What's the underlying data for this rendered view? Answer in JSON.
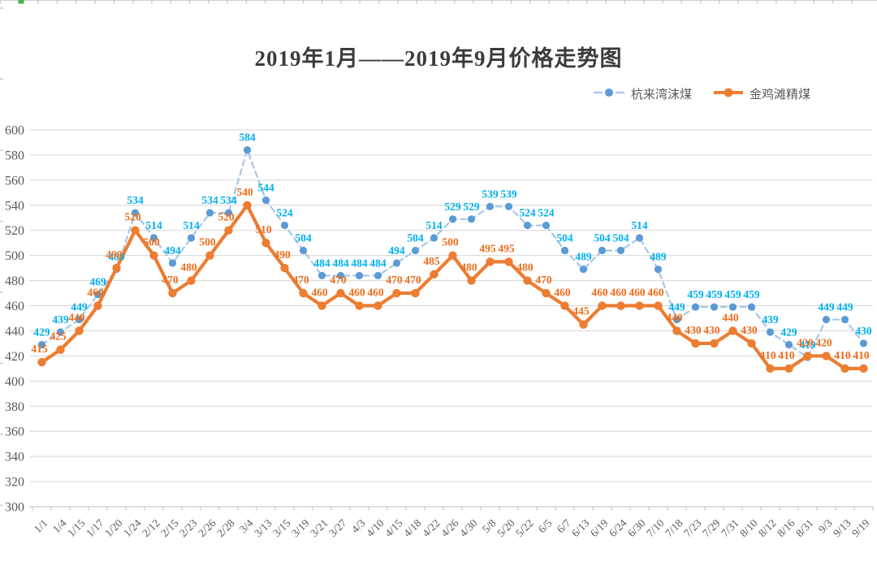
{
  "title": {
    "text": "2019年1月——2019年9月价格走势图"
  },
  "legend": {
    "items": [
      {
        "label": "杭来湾沫煤",
        "marker": "dashed-line-with-dot",
        "line_color": "#A9C6E8",
        "dot_color": "#5B9BD5"
      },
      {
        "label": "金鸡滩精煤",
        "marker": "solid-line-with-dot",
        "line_color": "#ED7D31",
        "dot_color": "#ED7D31"
      }
    ]
  },
  "axes": {
    "y_ticks": [
      600,
      580,
      560,
      540,
      520,
      500,
      480,
      460,
      440,
      420,
      400,
      380,
      360,
      340,
      320,
      300
    ],
    "y_label_color": "#595959",
    "x_label_color": "#595959",
    "grid_color": "#D6D6D6",
    "axis_color": "#BFBFBF"
  },
  "chart_data": {
    "type": "line",
    "title": "2019年1月——2019年9月价格走势图",
    "xlabel": "",
    "ylabel": "",
    "ylim": [
      300,
      600
    ],
    "ytick_step": 20,
    "grid": true,
    "legend_position": "top-right",
    "data_labels": true,
    "categories": [
      "1/1",
      "1/4",
      "1/15",
      "1/17",
      "1/20",
      "1/24",
      "2/12",
      "2/15",
      "2/23",
      "2/26",
      "2/28",
      "3/4",
      "3/13",
      "3/15",
      "3/19",
      "3/21",
      "3/27",
      "4/3",
      "4/10",
      "4/15",
      "4/18",
      "4/22",
      "4/26",
      "4/30",
      "5/8",
      "5/20",
      "5/22",
      "6/5",
      "6/7",
      "6/13",
      "6/19",
      "6/24",
      "6/30",
      "7/10",
      "7/18",
      "7/23",
      "7/29",
      "7/31",
      "8/10",
      "8/12",
      "8/16",
      "8/31",
      "9/3",
      "9/13",
      "9/19"
    ],
    "series": [
      {
        "name": "杭来湾沫煤",
        "style": "dashed",
        "line_color": "#A9C6E8",
        "marker_color": "#5B9BD5",
        "label_color": "#00B0F0",
        "values": [
          429,
          439,
          449,
          469,
          489,
          534,
          514,
          494,
          514,
          534,
          534,
          584,
          544,
          524,
          504,
          484,
          484,
          484,
          484,
          494,
          504,
          514,
          529,
          529,
          539,
          539,
          524,
          524,
          504,
          489,
          504,
          504,
          514,
          489,
          449,
          459,
          459,
          459,
          459,
          439,
          429,
          419,
          449,
          449,
          430
        ]
      },
      {
        "name": "金鸡滩精煤",
        "style": "solid",
        "line_color": "#ED7D31",
        "marker_color": "#ED7D31",
        "label_color": "#ED6E1E",
        "values": [
          415,
          425,
          440,
          460,
          490,
          520,
          500,
          470,
          480,
          500,
          520,
          540,
          510,
          490,
          470,
          460,
          470,
          460,
          460,
          470,
          470,
          485,
          500,
          480,
          495,
          495,
          480,
          470,
          460,
          445,
          460,
          460,
          460,
          460,
          440,
          430,
          430,
          440,
          430,
          410,
          410,
          420,
          420,
          410,
          410
        ]
      }
    ]
  }
}
